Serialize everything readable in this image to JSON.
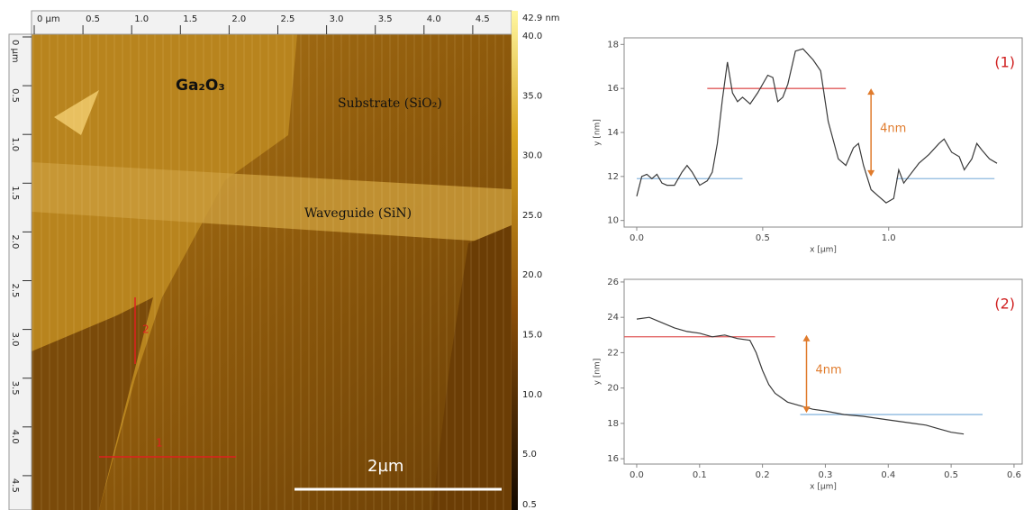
{
  "afm_image": {
    "x_ruler": [
      "0 µm",
      "0.5",
      "1.0",
      "1.5",
      "2.0",
      "2.5",
      "3.0",
      "3.5",
      "4.0",
      "4.5"
    ],
    "y_ruler": [
      "0 µm",
      "0.5",
      "1.0",
      "1.5",
      "2.0",
      "2.5",
      "3.0",
      "3.5",
      "4.0",
      "4.5"
    ],
    "colorbar": [
      "42.9 nm",
      "40.0",
      "35.0",
      "30.0",
      "25.0",
      "20.0",
      "15.0",
      "10.0",
      "5.0",
      "0.5"
    ],
    "labels": {
      "material": "Ga₂O₃",
      "substrate": "Substrate (SiO₂)",
      "waveguide": "Waveguide (SiN)",
      "scale_bar": "2µm",
      "profile_1": "1",
      "profile_2": "2"
    }
  },
  "chart_data": [
    {
      "type": "line",
      "x_label": "x [µm]",
      "y_label": "y [nm]",
      "annotation": "4nm",
      "tag": "(1)",
      "color": "#3a3a3a",
      "x": [
        0,
        0.02,
        0.04,
        0.06,
        0.08,
        0.1,
        0.12,
        0.15,
        0.18,
        0.2,
        0.22,
        0.25,
        0.28,
        0.3,
        0.32,
        0.34,
        0.36,
        0.38,
        0.4,
        0.42,
        0.45,
        0.48,
        0.52,
        0.54,
        0.56,
        0.58,
        0.6,
        0.63,
        0.66,
        0.7,
        0.73,
        0.76,
        0.8,
        0.83,
        0.86,
        0.88,
        0.9,
        0.93,
        0.96,
        0.99,
        1.02,
        1.04,
        1.06,
        1.08,
        1.12,
        1.16,
        1.2,
        1.22,
        1.25,
        1.28,
        1.3,
        1.33,
        1.35,
        1.37,
        1.4,
        1.43
      ],
      "values": [
        11.1,
        12.0,
        12.1,
        11.9,
        12.1,
        11.7,
        11.6,
        11.6,
        12.2,
        12.5,
        12.2,
        11.6,
        11.8,
        12.2,
        13.5,
        15.5,
        17.2,
        15.8,
        15.4,
        15.6,
        15.3,
        15.8,
        16.6,
        16.5,
        15.4,
        15.6,
        16.2,
        17.7,
        17.8,
        17.3,
        16.8,
        14.5,
        12.8,
        12.5,
        13.3,
        13.5,
        12.5,
        11.4,
        11.1,
        10.8,
        11.0,
        12.3,
        11.7,
        12.0,
        12.6,
        13.0,
        13.5,
        13.7,
        13.1,
        12.9,
        12.3,
        12.8,
        13.5,
        13.2,
        12.8,
        12.6
      ],
      "xlim": [
        -0.05,
        1.53
      ],
      "ylim": [
        9.7,
        18.3
      ],
      "xticks": [
        {
          "value": 0,
          "label": "0.0"
        },
        0.5,
        {
          "value": 1,
          "label": "1.0"
        }
      ],
      "yticks": [
        10,
        12,
        14,
        16,
        18
      ],
      "reference_lines": [
        {
          "x": [
            0.28,
            0.83
          ],
          "y": 16,
          "color": "#e05a5a"
        },
        {
          "x": [
            0,
            0.42
          ],
          "y": 11.9,
          "color": "#8cb8df"
        },
        {
          "x": [
            1.03,
            1.42
          ],
          "y": 11.9,
          "color": "#8cb8df"
        }
      ],
      "arrow": {
        "x": 0.93,
        "y": [
          16,
          12
        ],
        "color": "#e07b2c"
      }
    },
    {
      "type": "line",
      "x_label": "x [µm]",
      "y_label": "y [nm]",
      "annotation": "4nm",
      "tag": "(2)",
      "color": "#3a3a3a",
      "x": [
        0,
        0.02,
        0.04,
        0.06,
        0.08,
        0.1,
        0.12,
        0.14,
        0.16,
        0.18,
        0.19,
        0.2,
        0.21,
        0.22,
        0.24,
        0.26,
        0.28,
        0.3,
        0.33,
        0.36,
        0.4,
        0.44,
        0.46,
        0.48,
        0.5,
        0.52
      ],
      "values": [
        23.9,
        24.0,
        23.7,
        23.4,
        23.2,
        23.1,
        22.9,
        23.0,
        22.8,
        22.7,
        22.0,
        21.0,
        20.2,
        19.7,
        19.2,
        19.0,
        18.8,
        18.7,
        18.5,
        18.4,
        18.2,
        18.0,
        17.9,
        17.7,
        17.5,
        17.4
      ],
      "xlim": [
        -0.02,
        0.613
      ],
      "ylim": [
        15.7,
        26.15
      ],
      "xticks": [
        {
          "value": 0,
          "label": "0.0"
        },
        0.1,
        0.2,
        0.3,
        0.4,
        0.5,
        0.6
      ],
      "yticks": [
        16,
        18,
        20,
        22,
        24,
        26
      ],
      "reference_lines": [
        {
          "x": [
            -0.02,
            0.22
          ],
          "y": 22.9,
          "color": "#e05a5a"
        },
        {
          "x": [
            0.26,
            0.55
          ],
          "y": 18.5,
          "color": "#8cb8df"
        }
      ],
      "arrow": {
        "x": 0.27,
        "y": [
          23,
          18.6
        ],
        "color": "#e07b2c"
      }
    }
  ]
}
